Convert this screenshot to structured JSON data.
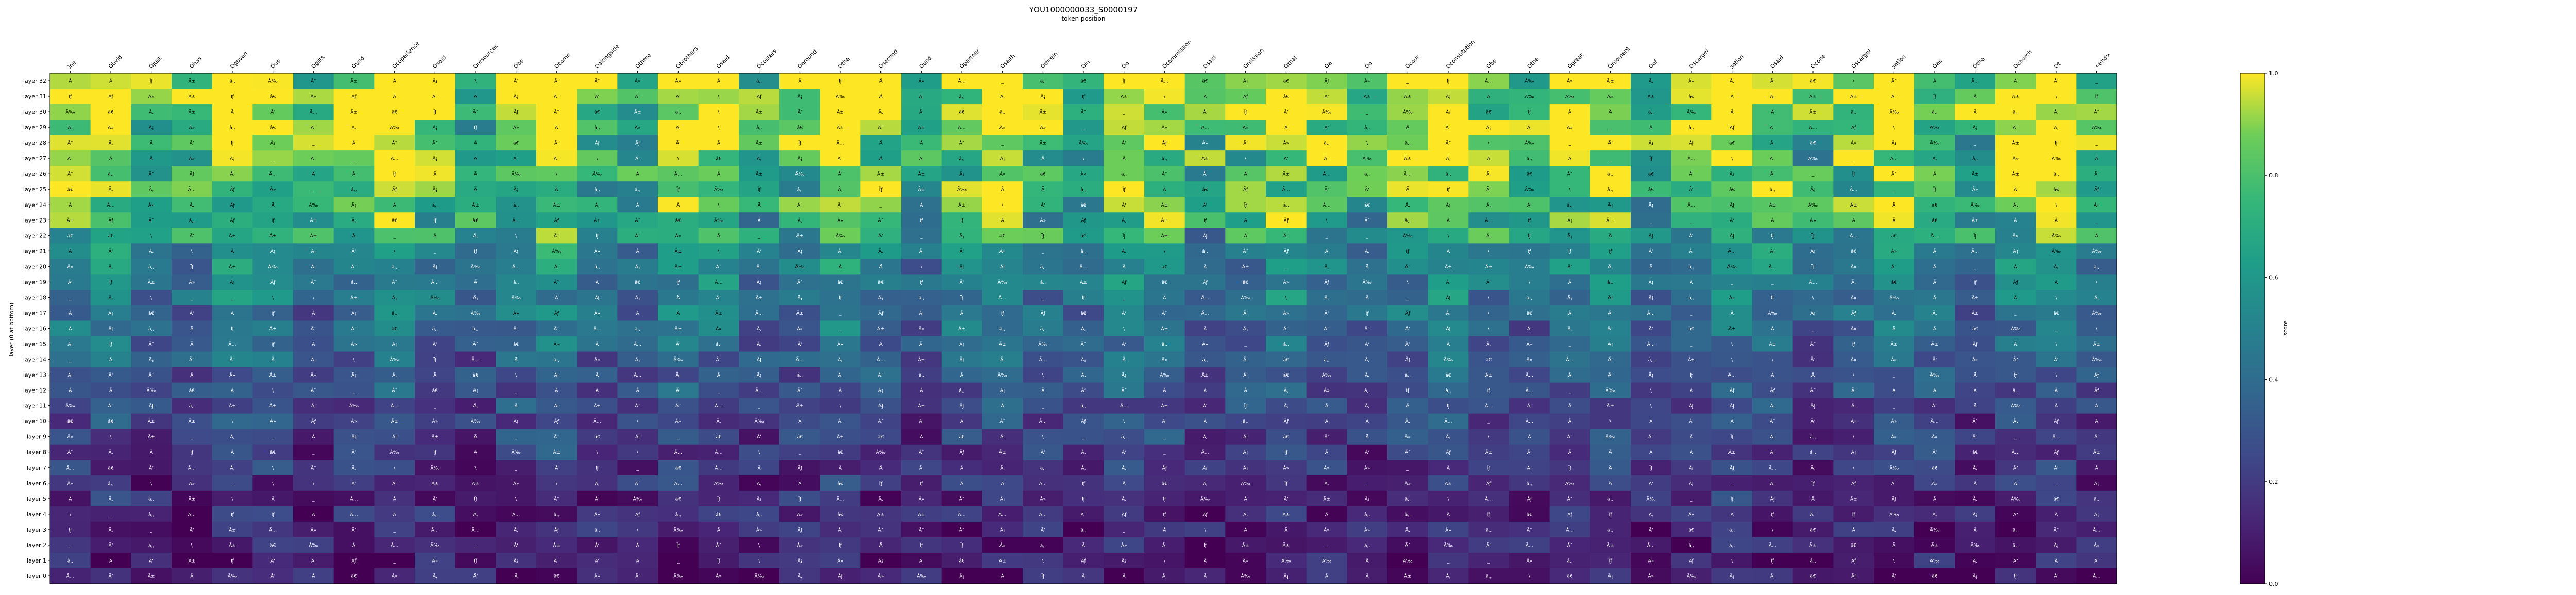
{
  "chart_data": {
    "type": "heatmap",
    "title": "YOU1000000033_S0000197",
    "xlabel": "token position",
    "ylabel": "layer (0 at bottom)",
    "colorbar_label": "score",
    "colormap": "viridis",
    "vmin": 0.0,
    "vmax": 1.0,
    "colorbar_ticks": [
      "0.0",
      "0.2",
      "0.4",
      "0.6",
      "0.8",
      "1.0"
    ],
    "x_tokens": [
      "ine",
      "Obvid",
      "Ojust",
      "Ohas",
      "Ogoven",
      "Ous",
      "Ogilts",
      "Ound",
      "Ocoperience",
      "Osaid",
      "Oresources",
      "Obs",
      "Ocome",
      "Oalongside",
      "Othree",
      "Obrothers",
      "Osaid",
      "Ocosters",
      "Oaround",
      "Othe",
      "Osecond",
      "Ound",
      "Opartner",
      "Osaith",
      "Othrein",
      "Oin",
      "Oa",
      "Ocommission",
      "Osaid",
      "Omission",
      "Othat",
      "Oa",
      "Oa",
      "Ocour",
      "Oconstitution",
      "Obs",
      "Othe",
      "Ogreat",
      "Omoment",
      "Oof",
      "Oscargel",
      "sation",
      "Osaid",
      "Ocone",
      "Oscargel",
      "sation",
      "Oas",
      "Othe",
      "Ochurch",
      "Ot",
      "<end>"
    ],
    "y_labels": [
      "layer 32",
      "layer 31",
      "layer 30",
      "layer 29",
      "layer 28",
      "layer 27",
      "layer 26",
      "layer 25",
      "layer 24",
      "layer 23",
      "layer 22",
      "layer 21",
      "layer 20",
      "layer 19",
      "layer 18",
      "layer 17",
      "layer 16",
      "layer 15",
      "layer 14",
      "layer 13",
      "layer 12",
      "layer 11",
      "layer 10",
      "layer 9",
      "layer 8",
      "layer 7",
      "layer 6",
      "layer 5",
      "layer 4",
      "layer 3",
      "layer 2",
      "layer 1",
      "layer 0"
    ],
    "cell_glyphs": [
      "â‚‚",
      "Ä ",
      "Ã",
      "\\",
      "Ïƒ",
      "Ã…",
      "Ã‰",
      "â€",
      "Ã¯",
      "Â»",
      "Ã‚",
      "Ã‘",
      "_",
      "Ä¡",
      "Ãƒ",
      "Ã±"
    ],
    "grid": false,
    "legend": "none"
  }
}
